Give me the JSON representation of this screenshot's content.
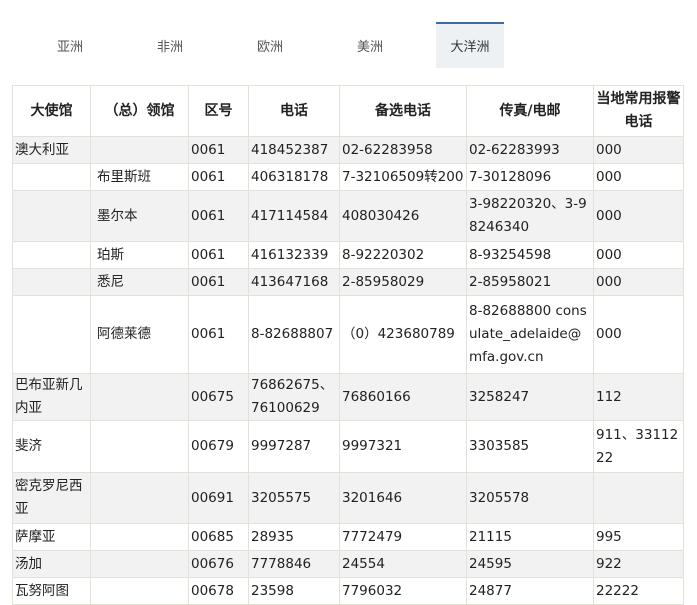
{
  "tabs": [
    "亚洲",
    "非洲",
    "欧洲",
    "美洲",
    "大洋洲"
  ],
  "active_tab": 4,
  "table": {
    "header": [
      "大使馆",
      "（总）领馆",
      "区号",
      "电话",
      "备选电话",
      "传真/电邮",
      "当地常用报警电话"
    ],
    "rows": [
      [
        "澳大利亚",
        null,
        "0061",
        "418452387",
        "02-62283958",
        "02-62283993",
        "000"
      ],
      [
        null,
        "布里斯班",
        "0061",
        "406318178",
        "7-32106509转200",
        "7-30128096",
        "000"
      ],
      [
        null,
        "墨尔本",
        "0061",
        "417114584",
        "408030426",
        "3-98220320、3-98246340",
        "000"
      ],
      [
        null,
        "珀斯",
        "0061",
        "416132339",
        "8-92220302",
        "8-93254598",
        "000"
      ],
      [
        null,
        "悉尼",
        "0061",
        "413647168",
        "2-85958029",
        "2-85958021",
        "000"
      ],
      [
        null,
        "阿德莱德",
        "0061",
        "8-82688807",
        "（0）423680789",
        "8-82688800 consulate_adelaide@mfa.gov.cn",
        "000"
      ],
      [
        "巴布亚新几内亚",
        null,
        "00675",
        "76862675、76100629",
        "76860166",
        "3258247",
        "112"
      ],
      [
        "斐济",
        null,
        "00679",
        "9997287",
        "9997321",
        "3303585",
        "911、3311222"
      ],
      [
        "密克罗尼西亚",
        null,
        "00691",
        "3205575",
        "3201646",
        "3205578",
        null
      ],
      [
        "萨摩亚",
        null,
        "00685",
        "28935",
        "7772479",
        "21115",
        "995"
      ],
      [
        "汤加",
        null,
        "00676",
        "7778846",
        "24554",
        "24595",
        "922"
      ],
      [
        "瓦努阿图",
        null,
        "00678",
        "23598",
        "7796032",
        "24877",
        "22222"
      ]
    ]
  }
}
